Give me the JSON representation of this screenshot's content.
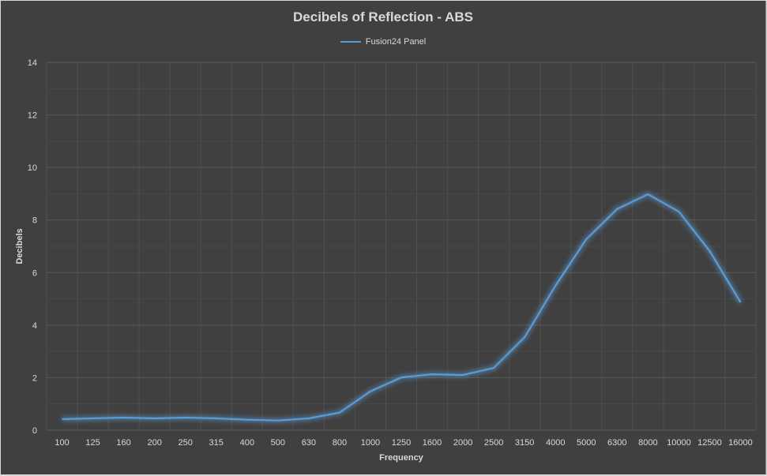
{
  "chart_data": {
    "type": "line",
    "title": "Decibels of Reflection - ABS",
    "xlabel": "Frequency",
    "ylabel": "Decibels",
    "ylim": [
      0,
      14
    ],
    "yticks": [
      0,
      2,
      4,
      6,
      8,
      10,
      12,
      14
    ],
    "grid": true,
    "legend_position": "top",
    "categories": [
      "100",
      "125",
      "160",
      "200",
      "250",
      "315",
      "400",
      "500",
      "630",
      "800",
      "1000",
      "1250",
      "1600",
      "2000",
      "2500",
      "3150",
      "4000",
      "5000",
      "6300",
      "8000",
      "10000",
      "12500",
      "16000"
    ],
    "series": [
      {
        "name": "Fusion24 Panel",
        "color": "#5b9bd5",
        "values": [
          0.42,
          0.45,
          0.48,
          0.45,
          0.48,
          0.45,
          0.4,
          0.37,
          0.45,
          0.67,
          1.48,
          2.01,
          2.13,
          2.1,
          2.37,
          3.54,
          5.5,
          7.27,
          8.42,
          8.98,
          8.32,
          6.82,
          4.87
        ]
      }
    ]
  },
  "colors": {
    "background": "#404040",
    "gridline": "#595959",
    "text": "#d9d9d9",
    "series": "#5b9bd5"
  }
}
